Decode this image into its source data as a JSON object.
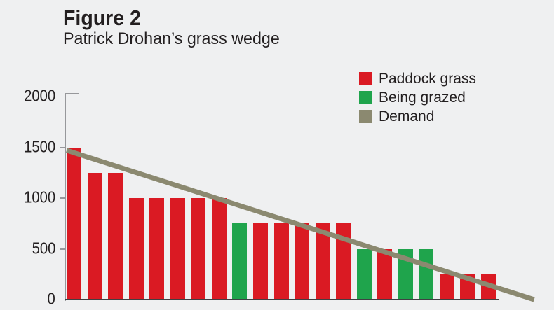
{
  "figure": {
    "label": "Figure 2",
    "subtitle": "Patrick Drohan’s grass wedge"
  },
  "colors": {
    "background": "#eff0f1",
    "text": "#231f20",
    "paddock_grass": "#da1a23",
    "being_grazed": "#1fa44c",
    "demand": "#8b8970",
    "y_axis_line": "#97989b",
    "x_axis_line": "#404043"
  },
  "legend": {
    "position": "top-right",
    "items": [
      {
        "key": "paddock-grass",
        "label": "Paddock grass",
        "color": "#da1a23"
      },
      {
        "key": "being-grazed",
        "label": "Being grazed",
        "color": "#1fa44c"
      },
      {
        "key": "demand",
        "label": "Demand",
        "color": "#8b8970"
      }
    ]
  },
  "chart_data": {
    "type": "bar",
    "title": "Patrick Drohan’s grass wedge",
    "xlabel": "",
    "ylabel": "",
    "ylim": [
      0,
      2000
    ],
    "yticks": [
      0,
      500,
      1000,
      1500,
      2000
    ],
    "grid": false,
    "x_axis_labels": "none",
    "legend_position": "top-right",
    "bars": [
      {
        "value": 1500,
        "series": "Paddock grass"
      },
      {
        "value": 1250,
        "series": "Paddock grass"
      },
      {
        "value": 1250,
        "series": "Paddock grass"
      },
      {
        "value": 1000,
        "series": "Paddock grass"
      },
      {
        "value": 1000,
        "series": "Paddock grass"
      },
      {
        "value": 1000,
        "series": "Paddock grass"
      },
      {
        "value": 1000,
        "series": "Paddock grass"
      },
      {
        "value": 1000,
        "series": "Paddock grass"
      },
      {
        "value": 750,
        "series": "Being grazed"
      },
      {
        "value": 750,
        "series": "Paddock grass"
      },
      {
        "value": 750,
        "series": "Paddock grass"
      },
      {
        "value": 750,
        "series": "Paddock grass"
      },
      {
        "value": 750,
        "series": "Paddock grass"
      },
      {
        "value": 750,
        "series": "Paddock grass"
      },
      {
        "value": 500,
        "series": "Being grazed"
      },
      {
        "value": 500,
        "series": "Paddock grass"
      },
      {
        "value": 500,
        "series": "Being grazed"
      },
      {
        "value": 500,
        "series": "Being grazed"
      },
      {
        "value": 250,
        "series": "Paddock grass"
      },
      {
        "value": 250,
        "series": "Paddock grass"
      },
      {
        "value": 250,
        "series": "Paddock grass"
      }
    ],
    "demand_line": {
      "series": "Demand",
      "start_value": 1470,
      "end_value": 0,
      "points": [
        {
          "bar_x": 0,
          "value": 1470
        },
        {
          "bar_x": 22.56,
          "value": 0
        }
      ]
    }
  }
}
